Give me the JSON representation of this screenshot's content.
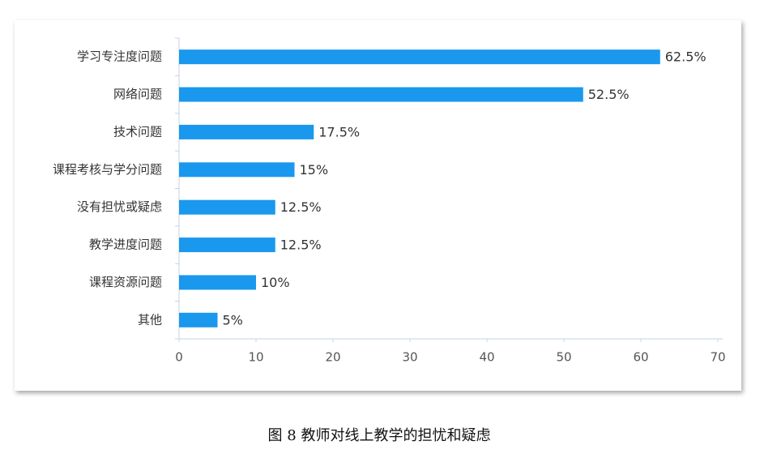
{
  "chart_data": {
    "type": "bar",
    "orientation": "horizontal",
    "title": "图 8  教师对线上教学的担忧和疑虑",
    "categories": [
      "学习专注度问题",
      "网络问题",
      "技术问题",
      "课程考核与学分问题",
      "没有担忧或疑虑",
      "教学进度问题",
      "课程资源问题",
      "其他"
    ],
    "values": [
      62.5,
      52.5,
      17.5,
      15,
      12.5,
      12.5,
      10,
      5
    ],
    "value_labels": [
      "62.5%",
      "52.5%",
      "17.5%",
      "15%",
      "12.5%",
      "12.5%",
      "10%",
      "5%"
    ],
    "color": "#1a98ee",
    "xlim": [
      0,
      70
    ],
    "xticks": [
      0,
      10,
      20,
      30,
      40,
      50,
      60,
      70
    ],
    "grid": false
  }
}
